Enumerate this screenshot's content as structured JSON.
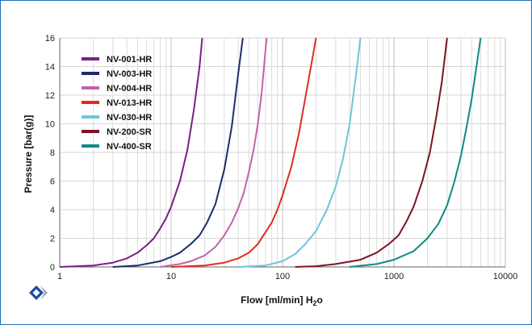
{
  "chart_data": {
    "type": "line",
    "x_scale": "log",
    "xlim": [
      1,
      10000
    ],
    "ylim": [
      0,
      16
    ],
    "x_ticks": [
      "1",
      "10",
      "100",
      "1000",
      "10000"
    ],
    "y_ticks": [
      "0",
      "2",
      "4",
      "6",
      "8",
      "10",
      "12",
      "14",
      "16"
    ],
    "xlabel": "Flow [ml/min] H",
    "xlabel_sub": "2",
    "xlabel_tail": "o",
    "ylabel": "Pressure [bar(g)]",
    "grid": true,
    "legend_position": "top-left",
    "series": [
      {
        "name": "NV-001-HR",
        "color": "#7a1f86",
        "points": [
          [
            1,
            0
          ],
          [
            2,
            0.1
          ],
          [
            3,
            0.3
          ],
          [
            4,
            0.6
          ],
          [
            5,
            1.0
          ],
          [
            6,
            1.5
          ],
          [
            7,
            2.0
          ],
          [
            8,
            2.7
          ],
          [
            9,
            3.4
          ],
          [
            10,
            4.2
          ],
          [
            12,
            6.0
          ],
          [
            14,
            8.2
          ],
          [
            16,
            11.0
          ],
          [
            18,
            14.0
          ],
          [
            19,
            16
          ]
        ]
      },
      {
        "name": "NV-003-HR",
        "color": "#1e2b6e",
        "points": [
          [
            3,
            0
          ],
          [
            5,
            0.1
          ],
          [
            8,
            0.4
          ],
          [
            10,
            0.7
          ],
          [
            12,
            1.0
          ],
          [
            15,
            1.6
          ],
          [
            18,
            2.2
          ],
          [
            21,
            3.1
          ],
          [
            25,
            4.4
          ],
          [
            30,
            6.8
          ],
          [
            35,
            9.8
          ],
          [
            40,
            13.5
          ],
          [
            44,
            16
          ]
        ]
      },
      {
        "name": "NV-004-HR",
        "color": "#c064a8",
        "points": [
          [
            8,
            0
          ],
          [
            12,
            0.2
          ],
          [
            15,
            0.4
          ],
          [
            20,
            0.8
          ],
          [
            25,
            1.4
          ],
          [
            30,
            2.2
          ],
          [
            35,
            3.1
          ],
          [
            40,
            4.1
          ],
          [
            45,
            5.2
          ],
          [
            50,
            6.7
          ],
          [
            55,
            8.2
          ],
          [
            60,
            10.0
          ],
          [
            65,
            12.2
          ],
          [
            70,
            15.0
          ],
          [
            72,
            16
          ]
        ]
      },
      {
        "name": "NV-013-HR",
        "color": "#e02b24",
        "points": [
          [
            10,
            0
          ],
          [
            20,
            0.1
          ],
          [
            30,
            0.3
          ],
          [
            40,
            0.6
          ],
          [
            50,
            1.0
          ],
          [
            60,
            1.6
          ],
          [
            70,
            2.4
          ],
          [
            80,
            3.1
          ],
          [
            90,
            4.0
          ],
          [
            100,
            5.0
          ],
          [
            120,
            7.0
          ],
          [
            140,
            9.3
          ],
          [
            160,
            11.8
          ],
          [
            180,
            14.0
          ],
          [
            200,
            16
          ]
        ]
      },
      {
        "name": "NV-030-HR",
        "color": "#6ec5d8",
        "points": [
          [
            40,
            0
          ],
          [
            70,
            0.1
          ],
          [
            100,
            0.4
          ],
          [
            130,
            0.9
          ],
          [
            160,
            1.6
          ],
          [
            200,
            2.5
          ],
          [
            250,
            4.0
          ],
          [
            300,
            5.6
          ],
          [
            350,
            7.6
          ],
          [
            400,
            10.0
          ],
          [
            450,
            13.0
          ],
          [
            500,
            16
          ]
        ]
      },
      {
        "name": "NV-200-SR",
        "color": "#7c1520",
        "points": [
          [
            130,
            0
          ],
          [
            200,
            0.05
          ],
          [
            300,
            0.2
          ],
          [
            500,
            0.5
          ],
          [
            700,
            1.0
          ],
          [
            900,
            1.6
          ],
          [
            1100,
            2.2
          ],
          [
            1300,
            3.2
          ],
          [
            1500,
            4.2
          ],
          [
            1800,
            6.0
          ],
          [
            2100,
            8.0
          ],
          [
            2400,
            10.5
          ],
          [
            2700,
            13.0
          ],
          [
            3000,
            16
          ]
        ]
      },
      {
        "name": "NV-400-SR",
        "color": "#0f8a84",
        "points": [
          [
            400,
            0
          ],
          [
            700,
            0.2
          ],
          [
            1000,
            0.5
          ],
          [
            1500,
            1.1
          ],
          [
            2000,
            2.0
          ],
          [
            2500,
            3.0
          ],
          [
            3000,
            4.3
          ],
          [
            3500,
            6.0
          ],
          [
            4000,
            7.8
          ],
          [
            4500,
            9.8
          ],
          [
            5000,
            11.8
          ],
          [
            5500,
            14.0
          ],
          [
            6000,
            16
          ]
        ]
      }
    ]
  }
}
